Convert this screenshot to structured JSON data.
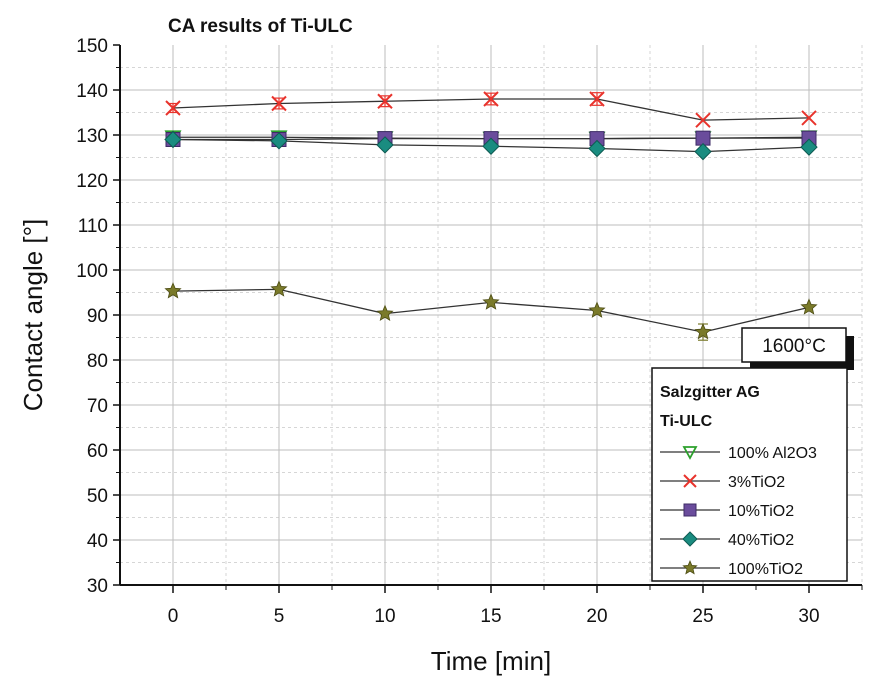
{
  "chart_data": {
    "type": "line",
    "title": "CA results of Ti-ULC",
    "xlabel": "Time [min]",
    "ylabel": "Contact angle [°]",
    "x": [
      0,
      5,
      10,
      15,
      20,
      25,
      30
    ],
    "xlim": [
      -2.5,
      32.5
    ],
    "ylim": [
      30,
      150
    ],
    "xticks": [
      0,
      5,
      10,
      15,
      20,
      25,
      30
    ],
    "yticks": [
      30,
      40,
      50,
      60,
      70,
      80,
      90,
      100,
      110,
      120,
      130,
      140,
      150
    ],
    "grid": true,
    "annotation": "1600°C",
    "legend": {
      "position": "bottom-right",
      "header": [
        "Salzgitter AG",
        "Ti-ULC"
      ]
    },
    "series": [
      {
        "name": "100% Al2O3",
        "marker": "triangle-down-open",
        "color": "#2ca02c",
        "values": [
          129.5,
          129.5,
          129.3,
          129.2,
          129.2,
          129.3,
          129.5
        ],
        "err": [
          0.4,
          0.4,
          0.4,
          0.4,
          0.4,
          0.4,
          0.4
        ]
      },
      {
        "name": "3%TiO2",
        "marker": "x",
        "color": "#e8332c",
        "values": [
          136.0,
          137.0,
          137.5,
          138.0,
          138.0,
          133.3,
          133.8
        ],
        "err": [
          1.0,
          1.2,
          1.2,
          1.3,
          1.4,
          0.4,
          0.4
        ]
      },
      {
        "name": "10%TiO2",
        "marker": "square",
        "color": "#6a4c9c",
        "values": [
          129.0,
          129.0,
          129.2,
          129.2,
          129.2,
          129.3,
          129.3
        ],
        "err": [
          0.4,
          0.4,
          0.4,
          0.4,
          0.4,
          0.4,
          0.4
        ]
      },
      {
        "name": "40%TiO2",
        "marker": "diamond",
        "color": "#1a8c80",
        "values": [
          129.0,
          128.7,
          127.8,
          127.5,
          127.0,
          126.3,
          127.3
        ],
        "err": [
          0.3,
          0.3,
          0.3,
          0.3,
          0.3,
          0.3,
          0.3
        ]
      },
      {
        "name": "100%TiO2",
        "marker": "star",
        "color": "#7a7a2a",
        "values": [
          95.3,
          95.7,
          90.3,
          92.8,
          91.0,
          86.2,
          91.7
        ],
        "err": [
          0.4,
          0.4,
          0.4,
          0.4,
          0.4,
          1.8,
          0.4
        ]
      }
    ]
  }
}
